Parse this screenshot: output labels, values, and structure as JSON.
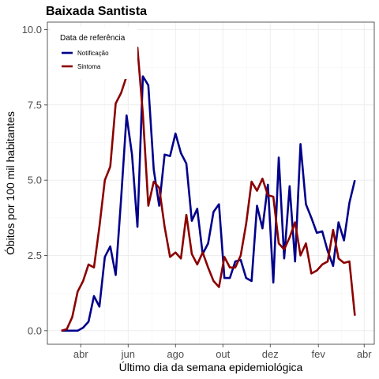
{
  "chart_data": {
    "type": "line",
    "title": "Baixada Santista",
    "xlabel": "Último dia da semana epidemiológica",
    "ylabel": "Óbitos por 100 mil habitantes",
    "ylim": [
      -0.45,
      10.25
    ],
    "yticks": [
      0.0,
      2.5,
      5.0,
      7.5,
      10.0
    ],
    "ytick_labels": [
      "0.0",
      "2.5",
      "5.0",
      "7.5",
      "10.0"
    ],
    "xlim": [
      "2020-02-18",
      "2021-04-14"
    ],
    "xticks": [
      "2020-04-01",
      "2020-06-01",
      "2020-08-01",
      "2020-10-01",
      "2020-12-01",
      "2021-02-01",
      "2021-04-01"
    ],
    "xtick_labels": [
      "abr",
      "jun",
      "ago",
      "out",
      "dez",
      "fev",
      "abr"
    ],
    "grid": true,
    "legend": {
      "title": "Data de referência",
      "position": "top-left"
    },
    "colors": {
      "Notificação": "#00008B",
      "Sintoma": "#8B0000"
    },
    "series": [
      {
        "name": "Notificação",
        "x": [
          "2020-03-07",
          "2020-03-14",
          "2020-03-21",
          "2020-03-28",
          "2020-04-04",
          "2020-04-11",
          "2020-04-18",
          "2020-04-25",
          "2020-05-02",
          "2020-05-09",
          "2020-05-16",
          "2020-05-23",
          "2020-05-30",
          "2020-06-06",
          "2020-06-13",
          "2020-06-20",
          "2020-06-27",
          "2020-07-04",
          "2020-07-11",
          "2020-07-18",
          "2020-07-25",
          "2020-08-01",
          "2020-08-08",
          "2020-08-15",
          "2020-08-22",
          "2020-08-29",
          "2020-09-05",
          "2020-09-12",
          "2020-09-19",
          "2020-09-26",
          "2020-10-03",
          "2020-10-10",
          "2020-10-17",
          "2020-10-24",
          "2020-10-31",
          "2020-11-07",
          "2020-11-14",
          "2020-11-21",
          "2020-11-28",
          "2020-12-05",
          "2020-12-12",
          "2020-12-19",
          "2020-12-26",
          "2021-01-02",
          "2021-01-09",
          "2021-01-16",
          "2021-01-23",
          "2021-01-30",
          "2021-02-06",
          "2021-02-13",
          "2021-02-20",
          "2021-02-27",
          "2021-03-06",
          "2021-03-13",
          "2021-03-20"
        ],
        "values": [
          0.0,
          0.0,
          0.0,
          0.0,
          0.1,
          0.3,
          1.15,
          0.8,
          2.45,
          2.8,
          1.85,
          4.4,
          7.15,
          5.85,
          3.45,
          8.45,
          8.15,
          5.35,
          4.15,
          5.85,
          5.8,
          6.55,
          5.9,
          5.55,
          3.65,
          4.05,
          2.55,
          2.9,
          3.95,
          4.2,
          1.75,
          1.75,
          2.3,
          2.35,
          1.75,
          1.65,
          4.15,
          3.4,
          4.85,
          1.6,
          5.75,
          2.4,
          4.8,
          2.3,
          6.2,
          4.2,
          3.75,
          3.25,
          3.3,
          2.65,
          2.15,
          3.6,
          3.0,
          4.25,
          5.0
        ]
      },
      {
        "name": "Sintoma",
        "x": [
          "2020-03-07",
          "2020-03-14",
          "2020-03-21",
          "2020-03-28",
          "2020-04-04",
          "2020-04-11",
          "2020-04-18",
          "2020-04-25",
          "2020-05-02",
          "2020-05-09",
          "2020-05-16",
          "2020-05-23",
          "2020-05-30",
          "2020-06-06",
          "2020-06-13",
          "2020-06-20",
          "2020-06-27",
          "2020-07-04",
          "2020-07-11",
          "2020-07-18",
          "2020-07-25",
          "2020-08-01",
          "2020-08-08",
          "2020-08-15",
          "2020-08-22",
          "2020-08-29",
          "2020-09-05",
          "2020-09-12",
          "2020-09-19",
          "2020-09-26",
          "2020-10-03",
          "2020-10-10",
          "2020-10-17",
          "2020-10-24",
          "2020-10-31",
          "2020-11-07",
          "2020-11-14",
          "2020-11-21",
          "2020-11-28",
          "2020-12-05",
          "2020-12-12",
          "2020-12-19",
          "2020-12-26",
          "2021-01-02",
          "2021-01-09",
          "2021-01-16",
          "2021-01-23",
          "2021-01-30",
          "2021-02-06",
          "2021-02-13",
          "2021-02-20",
          "2021-02-27",
          "2021-03-06",
          "2021-03-13",
          "2021-03-20"
        ],
        "values": [
          0.0,
          0.05,
          0.45,
          1.3,
          1.65,
          2.2,
          2.1,
          3.45,
          5.0,
          5.45,
          7.55,
          7.9,
          8.45,
          8.9,
          9.4,
          7.2,
          4.15,
          4.95,
          4.75,
          3.45,
          2.45,
          2.6,
          2.4,
          3.85,
          2.55,
          2.2,
          2.6,
          2.1,
          1.65,
          1.45,
          2.45,
          2.1,
          2.1,
          2.5,
          3.55,
          4.95,
          4.65,
          5.05,
          4.5,
          4.45,
          2.9,
          2.7,
          3.1,
          3.6,
          2.5,
          2.9,
          1.9,
          2.0,
          2.2,
          2.3,
          3.35,
          2.4,
          2.25,
          2.3,
          0.5
        ]
      }
    ]
  }
}
